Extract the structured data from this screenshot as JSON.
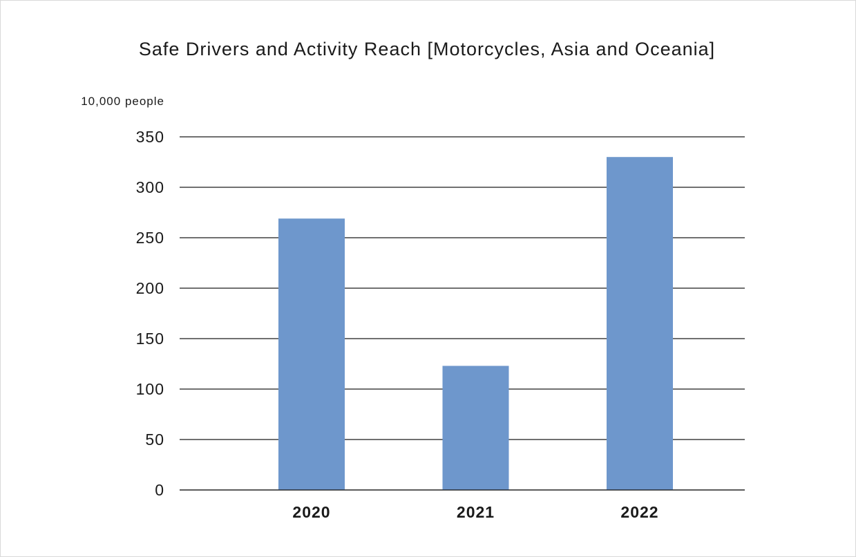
{
  "chart_data": {
    "type": "bar",
    "title": "Safe Drivers and Activity Reach [Motorcycles, Asia and Oceania]",
    "ylabel": "10,000 people",
    "xlabel": "",
    "categories": [
      "2020",
      "2021",
      "2022"
    ],
    "values": [
      269,
      123,
      330
    ],
    "ylim": [
      0,
      350
    ],
    "yticks": [
      0,
      50,
      100,
      150,
      200,
      250,
      300,
      350
    ],
    "grid": true,
    "bar_color": "#6e97cc",
    "legend": "none"
  }
}
